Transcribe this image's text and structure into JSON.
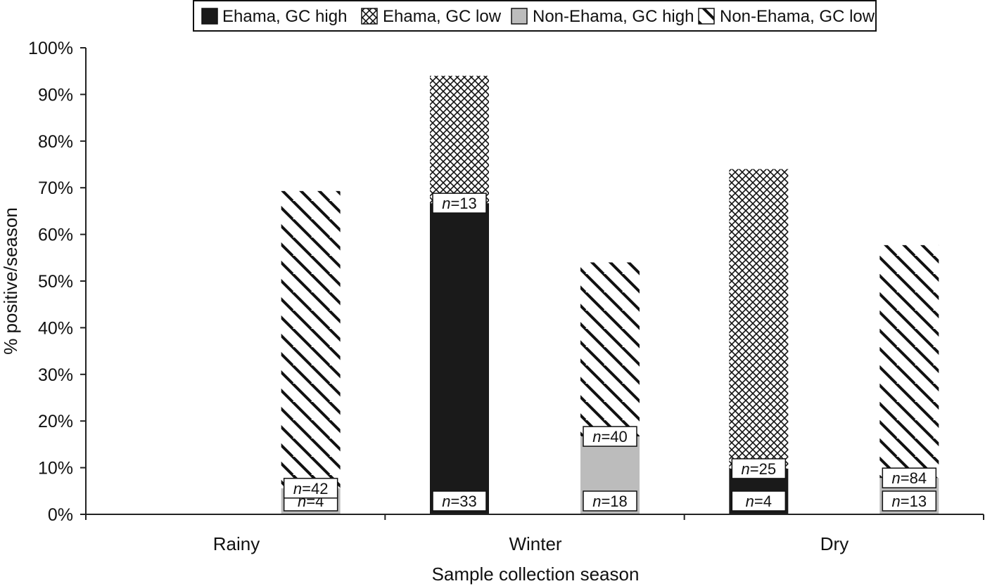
{
  "chart_data": {
    "type": "bar",
    "stacked": true,
    "xlabel": "Sample collection season",
    "ylabel": "% positive/season",
    "ylim": [
      0,
      100
    ],
    "yticks": [
      "0%",
      "10%",
      "20%",
      "30%",
      "40%",
      "50%",
      "60%",
      "70%",
      "80%",
      "90%",
      "100%"
    ],
    "categories": [
      "Rainy",
      "Winter",
      "Dry"
    ],
    "groups": [
      "Ehama",
      "Non-Ehama"
    ],
    "legend_position": "top",
    "series": [
      {
        "name": "Ehama, GC high",
        "group": "Ehama",
        "values": [
          null,
          66.7,
          9.8
        ],
        "n": [
          "",
          "33",
          "4"
        ],
        "pattern": "solid-black"
      },
      {
        "name": "Ehama, GC low",
        "group": "Ehama",
        "values": [
          null,
          27.3,
          64.2
        ],
        "n": [
          "",
          "13",
          "25"
        ],
        "pattern": "crosshatch"
      },
      {
        "name": "Non-Ehama, GC high",
        "group": "Non-Ehama",
        "values": [
          5.6,
          16.7,
          7.8
        ],
        "n": [
          "4",
          "18",
          "13"
        ],
        "pattern": "solid-gray"
      },
      {
        "name": "Non-Ehama, GC low",
        "group": "Non-Ehama",
        "values": [
          63.7,
          37.3,
          49.9
        ],
        "n": [
          "42",
          "40",
          "84"
        ],
        "pattern": "diagonal"
      }
    ]
  },
  "n_prefix": "n",
  "n_sep": "=",
  "colors": {
    "black": "#1a1a1a",
    "gray": "#bcbcbc",
    "axis": "#222222"
  }
}
